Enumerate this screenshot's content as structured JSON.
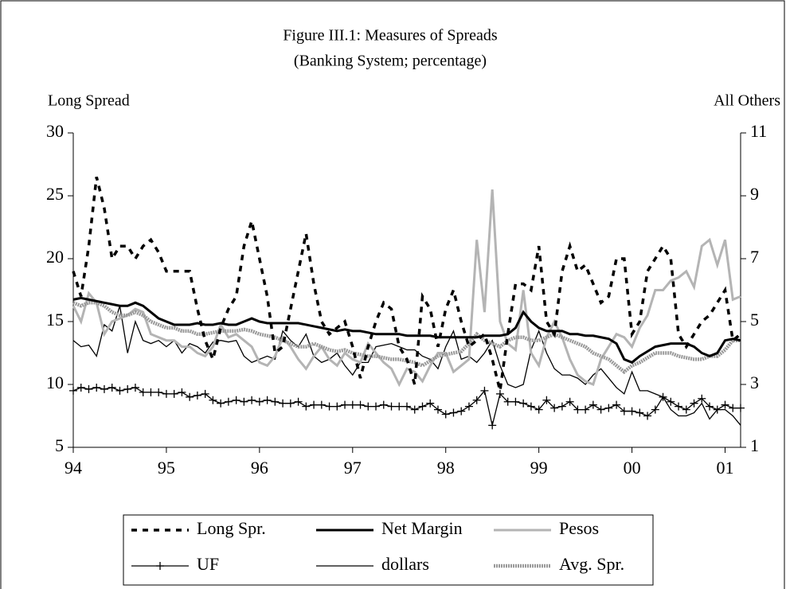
{
  "chart_data": {
    "type": "line",
    "title": "Figure III.1: Measures of Spreads",
    "subtitle": "(Banking System; percentage)",
    "ylabel": "Long Spread",
    "y2label": "All Others",
    "xlim": [
      0,
      86
    ],
    "xticks": [
      {
        "value": 0,
        "label": "94"
      },
      {
        "value": 12,
        "label": "95"
      },
      {
        "value": 24,
        "label": "96"
      },
      {
        "value": 36,
        "label": "97"
      },
      {
        "value": 48,
        "label": "98"
      },
      {
        "value": 60,
        "label": "99"
      },
      {
        "value": 72,
        "label": "00"
      },
      {
        "value": 84,
        "label": "01"
      }
    ],
    "ylim": [
      5,
      30
    ],
    "yticks": [
      5,
      10,
      15,
      20,
      25,
      30
    ],
    "y2lim": [
      1,
      11
    ],
    "y2ticks": [
      1,
      3,
      5,
      7,
      9,
      11
    ],
    "legend": "bottom",
    "series": [
      {
        "name": "Long Spr.",
        "color": "#000000",
        "line_style": "dashed",
        "axis": "y",
        "values": [
          19,
          17,
          21,
          26.5,
          24,
          20,
          21,
          21,
          20,
          21,
          21.5,
          20.5,
          19,
          19,
          19,
          19,
          16,
          13.5,
          12,
          14.5,
          16,
          17,
          21,
          23,
          20,
          17,
          12.5,
          13,
          16,
          19,
          22,
          18,
          15,
          14,
          14.5,
          15,
          13,
          10.5,
          13,
          15,
          16.5,
          16,
          13,
          12,
          10,
          17,
          16,
          13,
          16,
          17.5,
          15,
          13,
          13.5,
          14,
          12,
          9.5,
          14,
          18,
          18,
          17.5,
          21,
          15,
          14,
          19,
          21,
          19,
          19.5,
          18,
          16.5,
          17,
          20,
          20,
          14,
          15,
          19,
          20,
          21,
          20,
          14,
          13,
          14,
          15,
          15.5,
          16.5,
          17.5,
          13.5,
          14
        ]
      },
      {
        "name": "Net Margin",
        "color": "#000000",
        "line_style": "thick",
        "axis": "y2",
        "values": [
          5.7,
          5.75,
          5.7,
          5.65,
          5.6,
          5.55,
          5.5,
          5.5,
          5.6,
          5.5,
          5.3,
          5.1,
          5.0,
          4.9,
          4.9,
          4.9,
          4.95,
          4.9,
          4.9,
          4.95,
          4.9,
          4.9,
          5.0,
          5.1,
          5.0,
          4.95,
          4.95,
          4.95,
          4.95,
          4.95,
          4.9,
          4.85,
          4.8,
          4.75,
          4.7,
          4.75,
          4.7,
          4.7,
          4.65,
          4.6,
          4.6,
          4.6,
          4.6,
          4.55,
          4.55,
          4.55,
          4.55,
          4.5,
          4.5,
          4.5,
          4.5,
          4.5,
          4.5,
          4.55,
          4.55,
          4.55,
          4.6,
          4.8,
          5.3,
          5.0,
          4.8,
          4.7,
          4.7,
          4.7,
          4.6,
          4.6,
          4.55,
          4.55,
          4.5,
          4.45,
          4.3,
          3.8,
          3.7,
          3.9,
          4.05,
          4.2,
          4.25,
          4.3,
          4.3,
          4.3,
          4.2,
          4.0,
          3.9,
          4.0,
          4.4,
          4.45,
          4.4
        ]
      },
      {
        "name": "Pesos",
        "color": "#b4b4b4",
        "line_style": "thick",
        "axis": "y2",
        "values": [
          5.5,
          5.0,
          5.9,
          5.6,
          4.6,
          5.0,
          5.1,
          5.2,
          5.4,
          5.3,
          4.6,
          4.5,
          4.4,
          4.4,
          4.2,
          4.2,
          4.0,
          3.9,
          4.2,
          4.9,
          4.5,
          4.6,
          4.4,
          4.2,
          3.7,
          3.6,
          3.9,
          4.5,
          4.2,
          3.8,
          3.5,
          3.9,
          4.2,
          3.8,
          3.6,
          4.0,
          3.8,
          3.7,
          4.3,
          4.0,
          3.7,
          3.5,
          3.0,
          3.5,
          3.4,
          3.1,
          3.6,
          4.0,
          4.0,
          3.4,
          3.6,
          3.8,
          7.6,
          5.3,
          9.2,
          5.0,
          4.3,
          4.1,
          6.0,
          4.0,
          3.6,
          4.5,
          5.0,
          4.5,
          3.8,
          3.3,
          3.1,
          3.0,
          3.8,
          4.2,
          4.6,
          4.5,
          4.2,
          4.8,
          5.2,
          6.0,
          6.0,
          6.3,
          6.4,
          6.6,
          6.1,
          7.4,
          7.6,
          6.8,
          7.6,
          5.7,
          5.8
        ]
      },
      {
        "name": "UF",
        "color": "#000000",
        "line_style": "thin",
        "marker": "plus",
        "axis": "y2",
        "values": [
          2.8,
          2.9,
          2.85,
          2.9,
          2.85,
          2.9,
          2.8,
          2.85,
          2.9,
          2.75,
          2.75,
          2.75,
          2.7,
          2.7,
          2.75,
          2.6,
          2.65,
          2.7,
          2.5,
          2.4,
          2.45,
          2.5,
          2.45,
          2.5,
          2.45,
          2.5,
          2.45,
          2.4,
          2.4,
          2.45,
          2.3,
          2.35,
          2.35,
          2.3,
          2.3,
          2.35,
          2.35,
          2.35,
          2.3,
          2.3,
          2.35,
          2.3,
          2.3,
          2.3,
          2.2,
          2.3,
          2.4,
          2.2,
          2.05,
          2.1,
          2.15,
          2.3,
          2.5,
          2.8,
          1.7,
          2.7,
          2.45,
          2.45,
          2.4,
          2.3,
          2.2,
          2.5,
          2.25,
          2.3,
          2.45,
          2.2,
          2.2,
          2.35,
          2.2,
          2.25,
          2.35,
          2.15,
          2.15,
          2.1,
          2.0,
          2.2,
          2.6,
          2.45,
          2.3,
          2.2,
          2.4,
          2.55,
          2.3,
          2.2,
          2.35,
          2.25,
          2.25
        ]
      },
      {
        "name": "dollars",
        "color": "#000000",
        "line_style": "thin",
        "axis": "y2",
        "values": [
          4.4,
          4.2,
          4.25,
          3.9,
          4.9,
          4.7,
          5.5,
          4.0,
          5.0,
          4.4,
          4.3,
          4.4,
          4.2,
          4.4,
          4.0,
          4.3,
          4.2,
          4.0,
          4.35,
          4.4,
          4.35,
          4.4,
          3.9,
          3.7,
          3.8,
          3.9,
          3.8,
          4.7,
          4.4,
          4.2,
          4.6,
          3.9,
          3.7,
          3.8,
          4.0,
          3.6,
          3.3,
          3.7,
          3.7,
          4.2,
          4.25,
          4.3,
          4.2,
          4.1,
          4.1,
          3.9,
          3.8,
          3.5,
          4.2,
          4.7,
          3.8,
          3.9,
          3.7,
          4.0,
          4.4,
          3.6,
          3.0,
          2.9,
          3.0,
          4.1,
          4.7,
          4.0,
          3.5,
          3.3,
          3.3,
          3.2,
          3.0,
          3.3,
          3.5,
          3.2,
          2.9,
          2.7,
          3.4,
          2.8,
          2.8,
          2.7,
          2.6,
          2.2,
          2.0,
          2.0,
          2.1,
          2.4,
          1.9,
          2.2,
          2.2,
          2.0,
          1.7
        ]
      },
      {
        "name": "Avg. Spr.",
        "color": "#999999",
        "line_style": "textured",
        "axis": "y2",
        "values": [
          5.6,
          5.5,
          5.6,
          5.6,
          5.5,
          5.3,
          5.2,
          5.2,
          5.3,
          5.2,
          5.0,
          4.9,
          4.8,
          4.8,
          4.7,
          4.7,
          4.6,
          4.6,
          4.65,
          4.7,
          4.7,
          4.7,
          4.75,
          4.7,
          4.6,
          4.55,
          4.5,
          4.4,
          4.3,
          4.2,
          4.2,
          4.3,
          4.2,
          4.1,
          4.05,
          4.1,
          4.0,
          3.95,
          3.9,
          3.9,
          3.85,
          3.8,
          3.8,
          3.75,
          3.7,
          3.6,
          3.75,
          3.9,
          3.95,
          4.0,
          4.05,
          4.3,
          4.6,
          4.4,
          4.3,
          4.2,
          4.4,
          4.5,
          4.5,
          4.4,
          4.4,
          4.5,
          4.6,
          4.5,
          4.4,
          4.3,
          4.2,
          4.0,
          3.9,
          3.8,
          3.6,
          3.4,
          3.6,
          3.7,
          3.85,
          4.0,
          4.0,
          4.0,
          3.9,
          3.85,
          3.8,
          3.8,
          3.9,
          3.9,
          4.1,
          4.4,
          4.4
        ]
      }
    ]
  }
}
